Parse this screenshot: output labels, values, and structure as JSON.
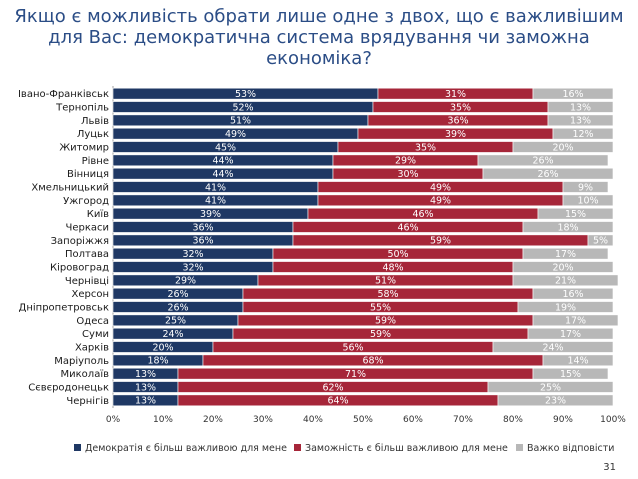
{
  "title": {
    "line1": "Якщо є можливість обрати лише одне з двох, що є важливішим",
    "line2": "для Вас: демократична система врядування чи заможна",
    "line3": "економіка?"
  },
  "page_number": "31",
  "colors": {
    "democracy": "#1f3864",
    "wealth": "#a62639",
    "hard": "#b8b8b8"
  },
  "chart_data": {
    "type": "bar",
    "orientation": "horizontal",
    "stacked": true,
    "xlim": [
      0,
      100
    ],
    "x_ticks": [
      "0%",
      "10%",
      "20%",
      "30%",
      "40%",
      "50%",
      "60%",
      "70%",
      "80%",
      "90%",
      "100%"
    ],
    "categories": [
      "Івано-Франківськ",
      "Тернопіль",
      "Львів",
      "Луцьк",
      "Житомир",
      "Рівне",
      "Вінниця",
      "Хмельницький",
      "Ужгород",
      "Київ",
      "Черкаси",
      "Запоріжжя",
      "Полтава",
      "Кіровоград",
      "Чернівці",
      "Херсон",
      "Дніпропетровськ",
      "Одеса",
      "Суми",
      "Харків",
      "Маріуполь",
      "Миколаїв",
      "Сєвєродонецьк",
      "Чернігів"
    ],
    "series": [
      {
        "name": "Демократія є більш важливою для мене",
        "values": [
          53,
          52,
          51,
          49,
          45,
          44,
          44,
          41,
          41,
          39,
          36,
          36,
          32,
          32,
          29,
          26,
          26,
          25,
          24,
          20,
          18,
          13,
          13,
          13
        ]
      },
      {
        "name": "Заможність є більш важливою для мене",
        "values": [
          31,
          35,
          36,
          39,
          35,
          29,
          30,
          49,
          49,
          46,
          46,
          59,
          50,
          48,
          51,
          58,
          55,
          59,
          59,
          56,
          68,
          71,
          62,
          64
        ]
      },
      {
        "name": "Важко відповісти",
        "values": [
          16,
          13,
          13,
          12,
          20,
          26,
          26,
          9,
          10,
          15,
          18,
          5,
          17,
          20,
          21,
          16,
          19,
          17,
          17,
          24,
          14,
          15,
          25,
          23
        ]
      }
    ]
  }
}
